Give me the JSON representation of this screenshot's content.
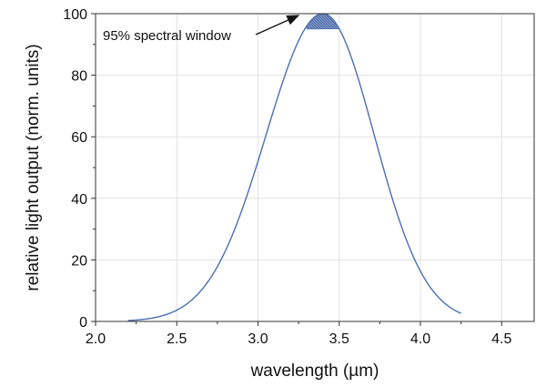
{
  "chart_data": {
    "type": "area",
    "xlabel": "wavelength (µm)",
    "ylabel": "relative light output (norm. units)",
    "xlim": [
      2.0,
      4.7
    ],
    "ylim": [
      0,
      100
    ],
    "x_ticks": [
      2.0,
      2.5,
      3.0,
      3.5,
      4.0,
      4.5
    ],
    "x_tick_labels": [
      "2.0",
      "2.5",
      "3.0",
      "3.5",
      "4.0",
      "4.5"
    ],
    "y_ticks": [
      0,
      20,
      40,
      60,
      80,
      100
    ],
    "y_tick_labels": [
      "0",
      "20",
      "40",
      "60",
      "80",
      "100"
    ],
    "grid": true,
    "series": [
      {
        "color": "#4a6fb0",
        "x": [
          2.2,
          2.3,
          2.4,
          2.5,
          2.6,
          2.7,
          2.8,
          2.9,
          3.0,
          3.1,
          3.2,
          3.3,
          3.35,
          3.4,
          3.45,
          3.5,
          3.6,
          3.7,
          3.8,
          3.9,
          4.0,
          4.1,
          4.2,
          4.25
        ],
        "y": [
          0.3,
          0.7,
          1.7,
          3.7,
          7.5,
          14.1,
          24.2,
          38.1,
          54.4,
          70.9,
          85.0,
          95.3,
          98.8,
          100.0,
          98.8,
          95.3,
          82.5,
          63.2,
          42.3,
          24.0,
          11.1,
          4.1,
          1.2,
          0.5
        ]
      }
    ],
    "highlight": {
      "label": "95% spectral window",
      "threshold": 95,
      "x_range": [
        3.3,
        3.5
      ],
      "fill": "#4a6fb0"
    }
  }
}
